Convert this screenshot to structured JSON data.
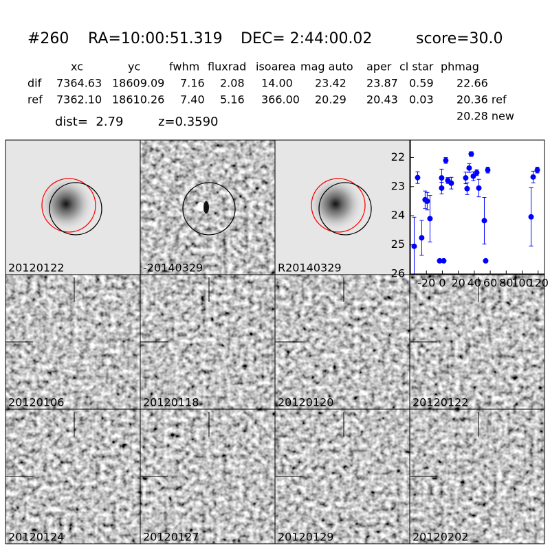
{
  "header": {
    "id": "#260",
    "ra": "RA=10:00:51.319",
    "dec": "DEC= 2:44:00.02",
    "score": "score=30.0"
  },
  "table": {
    "columns": [
      "xc",
      "yc",
      "fwhm",
      "fluxrad",
      "isoarea",
      "mag auto",
      "aper",
      "cl star",
      "phmag"
    ],
    "rows": [
      [
        "dif",
        "7364.63",
        "18609.09",
        "7.16",
        "2.08",
        "14.00",
        "23.42",
        "23.87",
        "0.59",
        "22.66"
      ],
      [
        "ref",
        "7362.10",
        "18610.26",
        "7.40",
        "5.16",
        "366.00",
        "20.29",
        "20.43",
        "0.03",
        "20.36 ref"
      ]
    ],
    "extra": "20.28 new"
  },
  "dist": "dist=  2.79",
  "z": "z=0.3590",
  "stamps": [
    {
      "label": "20120122",
      "kind": "ref"
    },
    {
      "label": "-20140329",
      "kind": "diff"
    },
    {
      "label": "R20140329",
      "kind": "ref"
    },
    {
      "label": "20120106",
      "kind": "noise"
    },
    {
      "label": "20120118",
      "kind": "noise"
    },
    {
      "label": "20120120",
      "kind": "noise"
    },
    {
      "label": "20120122",
      "kind": "noise",
      "color": "#ff0000"
    },
    {
      "label": "20120124",
      "kind": "noise"
    },
    {
      "label": "20120127",
      "kind": "noise"
    },
    {
      "label": "20120129",
      "kind": "noise"
    },
    {
      "label": "20120202",
      "kind": "noise"
    }
  ],
  "chart_data": {
    "type": "scatter",
    "color": "#0000ff",
    "x": [
      -35.3,
      -31,
      -25.9,
      -21.6,
      -19,
      -15.5,
      -3.4,
      -0.9,
      -0.9,
      1.7,
      4.3,
      6.9,
      11.2,
      29.3,
      31,
      33.6,
      36.2,
      38.8,
      43.1,
      45.7,
      52.6,
      54.3,
      56.9,
      111.2,
      113.8,
      119
    ],
    "values": [
      25.05,
      22.69,
      24.76,
      23.45,
      23.5,
      24.1,
      25.55,
      23.05,
      22.7,
      25.55,
      22.1,
      22.79,
      22.88,
      22.7,
      23.07,
      22.36,
      21.88,
      22.64,
      22.52,
      23.05,
      24.17,
      25.55,
      22.43,
      24.04,
      22.67,
      22.43
    ],
    "errors": [
      1.0,
      0.2,
      0.6,
      0.3,
      0.3,
      0.8,
      0.05,
      0.2,
      0.3,
      0.05,
      0.1,
      0.1,
      0.2,
      0.2,
      0.2,
      0.15,
      0.08,
      0.15,
      0.1,
      0.3,
      0.8,
      0.05,
      0.1,
      1.0,
      0.2,
      0.1
    ],
    "xlim": [
      -40,
      128
    ],
    "ylim": [
      21.4,
      26
    ],
    "y_inverted": true,
    "xticks": [
      -20,
      0,
      20,
      40,
      60,
      80,
      100,
      120
    ],
    "yticks": [
      22,
      23,
      24,
      25,
      26
    ]
  }
}
